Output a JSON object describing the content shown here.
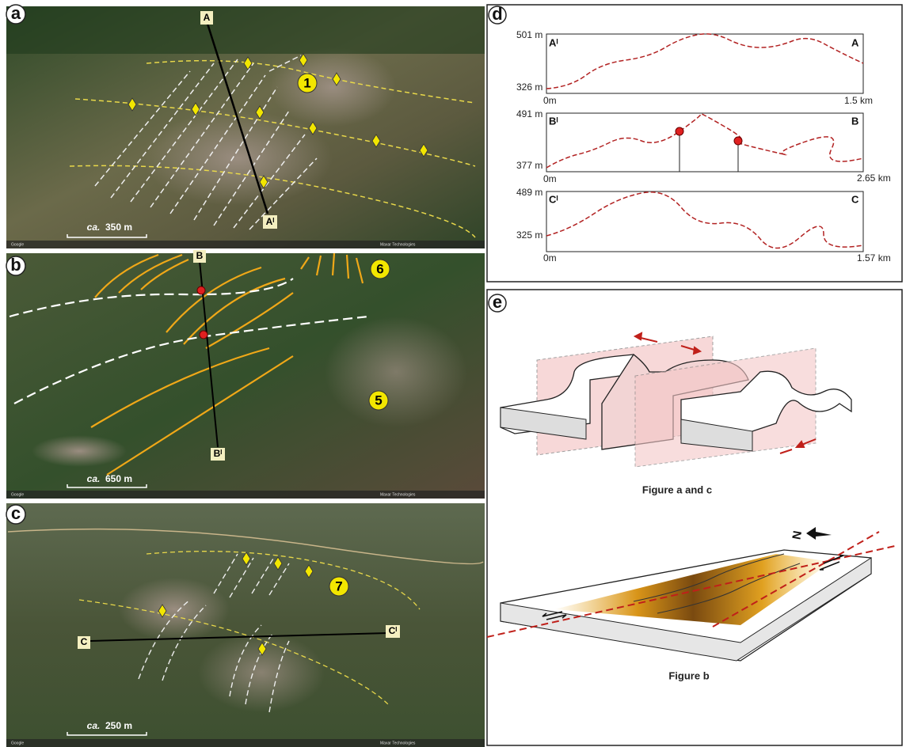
{
  "panels": [
    {
      "label": "a",
      "section": {
        "start": "A",
        "end": "Aᴵ"
      },
      "markers": [
        "1"
      ],
      "scale": {
        "prefix": "ca.",
        "value": "350 m"
      },
      "credit": "Google",
      "source": "Maxar Technologies"
    },
    {
      "label": "b",
      "section": {
        "start": "B",
        "end": "Bᴵ"
      },
      "markers": [
        "6",
        "5"
      ],
      "scale": {
        "prefix": "ca.",
        "value": "650 m"
      },
      "credit": "Google",
      "source": "Maxar Technologies"
    },
    {
      "label": "c",
      "section": {
        "start": "C",
        "end": "Cᴵ"
      },
      "markers": [
        "7"
      ],
      "scale": {
        "prefix": "ca.",
        "value": "250 m"
      },
      "credit": "Google",
      "source": "Maxar Technologies"
    }
  ],
  "profiles": {
    "label": "d",
    "items": [
      {
        "left": "Aᴵ",
        "right": "A",
        "top": "501 m",
        "bottom": "326 m",
        "start": "0m",
        "end": "1.5 km"
      },
      {
        "left": "Bᴵ",
        "right": "B",
        "top": "491 m",
        "bottom": "377 m",
        "start": "0m",
        "end": "2.65 km"
      },
      {
        "left": "Cᴵ",
        "right": "C",
        "top": "489 m",
        "bottom": "325 m",
        "start": "0m",
        "end": "1.57 km"
      }
    ]
  },
  "diagram": {
    "label": "e",
    "captions": [
      "Figure a and c",
      "Figure b"
    ],
    "north": "N"
  }
}
